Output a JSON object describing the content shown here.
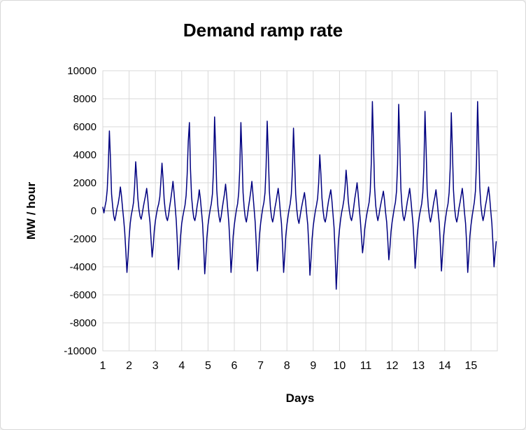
{
  "chart_data": {
    "type": "line",
    "title": "Demand ramp rate",
    "xlabel": "Days",
    "ylabel": "MW / hour",
    "xlim": [
      1,
      16
    ],
    "ylim": [
      -10000,
      10000
    ],
    "x_ticks": [
      1,
      2,
      3,
      4,
      5,
      6,
      7,
      8,
      9,
      10,
      11,
      12,
      13,
      14,
      15
    ],
    "y_ticks": [
      10000,
      8000,
      6000,
      4000,
      2000,
      0,
      -2000,
      -4000,
      -6000,
      -8000,
      -10000
    ],
    "grid": true,
    "legend": "none",
    "x_start": 1,
    "x_step": 0.0416667,
    "sampling": "hourly values, x in days",
    "colors": {
      "line": "#000080",
      "gridline": "#d9d9d9",
      "zero_axis": "#9d9d9d",
      "plot_border": "#d9d9d9",
      "text": "#000000"
    },
    "series": [
      {
        "name": "Demand ramp rate",
        "values": [
          250,
          -150,
          300,
          700,
          1500,
          3200,
          5700,
          3600,
          1200,
          300,
          -400,
          -700,
          -300,
          200,
          500,
          1000,
          1700,
          1100,
          200,
          -600,
          -1500,
          -2900,
          -4400,
          -3300,
          -1900,
          -900,
          -300,
          100,
          600,
          1700,
          3500,
          2300,
          900,
          100,
          -400,
          -600,
          -200,
          300,
          700,
          1100,
          1600,
          900,
          -100,
          -800,
          -2000,
          -3300,
          -2500,
          -1400,
          -700,
          -200,
          200,
          500,
          1000,
          2100,
          3400,
          2200,
          800,
          0,
          -500,
          -700,
          -300,
          300,
          800,
          1400,
          2100,
          1300,
          300,
          -700,
          -2200,
          -4200,
          -3100,
          -1800,
          -900,
          -400,
          0,
          400,
          1100,
          2600,
          5000,
          6300,
          3000,
          1000,
          100,
          -500,
          -700,
          -300,
          300,
          800,
          1500,
          900,
          0,
          -900,
          -2400,
          -4500,
          -3300,
          -1900,
          -1000,
          -400,
          100,
          500,
          1200,
          2900,
          6700,
          4200,
          1500,
          300,
          -400,
          -800,
          -400,
          200,
          700,
          1200,
          1900,
          1100,
          100,
          -900,
          -2300,
          -4400,
          -3200,
          -1800,
          -1000,
          -400,
          100,
          500,
          1300,
          3000,
          6300,
          3900,
          1300,
          200,
          -500,
          -800,
          -300,
          300,
          800,
          1400,
          2100,
          1200,
          200,
          -800,
          -2300,
          -4300,
          -3100,
          -1700,
          -900,
          -300,
          200,
          600,
          1300,
          3100,
          6400,
          4000,
          1400,
          200,
          -500,
          -800,
          -400,
          200,
          600,
          1100,
          1600,
          900,
          -100,
          -900,
          -2400,
          -4400,
          -3200,
          -1800,
          -1000,
          -400,
          100,
          500,
          1200,
          2800,
          5900,
          3600,
          1200,
          100,
          -600,
          -900,
          -400,
          100,
          500,
          900,
          1300,
          700,
          -200,
          -1000,
          -2500,
          -4600,
          -3400,
          -2000,
          -1100,
          -500,
          0,
          400,
          900,
          2000,
          4000,
          2600,
          900,
          0,
          -600,
          -800,
          -400,
          200,
          700,
          1100,
          1500,
          800,
          -200,
          -1200,
          -3000,
          -5600,
          -3900,
          -2200,
          -1300,
          -600,
          -100,
          300,
          800,
          1600,
          2900,
          1900,
          700,
          0,
          -500,
          -700,
          -300,
          300,
          900,
          1400,
          2000,
          1200,
          200,
          -700,
          -1800,
          -3000,
          -2300,
          -1300,
          -700,
          -200,
          200,
          600,
          1400,
          3400,
          7800,
          4800,
          1700,
          400,
          -300,
          -700,
          -300,
          200,
          600,
          1000,
          1400,
          800,
          -100,
          -800,
          -2000,
          -3500,
          -2600,
          -1500,
          -800,
          -300,
          200,
          600,
          1400,
          3300,
          7600,
          4700,
          1600,
          300,
          -400,
          -700,
          -300,
          200,
          700,
          1100,
          1600,
          900,
          0,
          -900,
          -2200,
          -4100,
          -3000,
          -1700,
          -900,
          -300,
          100,
          500,
          1300,
          3100,
          7100,
          4400,
          1500,
          300,
          -400,
          -800,
          -400,
          100,
          600,
          1000,
          1500,
          800,
          -100,
          -900,
          -2300,
          -4300,
          -3100,
          -1800,
          -1000,
          -400,
          100,
          500,
          1300,
          3000,
          7000,
          4300,
          1500,
          200,
          -500,
          -800,
          -400,
          200,
          600,
          1100,
          1600,
          900,
          -100,
          -900,
          -2300,
          -4400,
          -3200,
          -1800,
          -1000,
          -400,
          100,
          600,
          1400,
          3400,
          7800,
          4800,
          1700,
          400,
          -300,
          -700,
          -300,
          300,
          700,
          1200,
          1700,
          1000,
          0,
          -900,
          -2300,
          -4000,
          -3000,
          -2200
        ]
      }
    ]
  }
}
